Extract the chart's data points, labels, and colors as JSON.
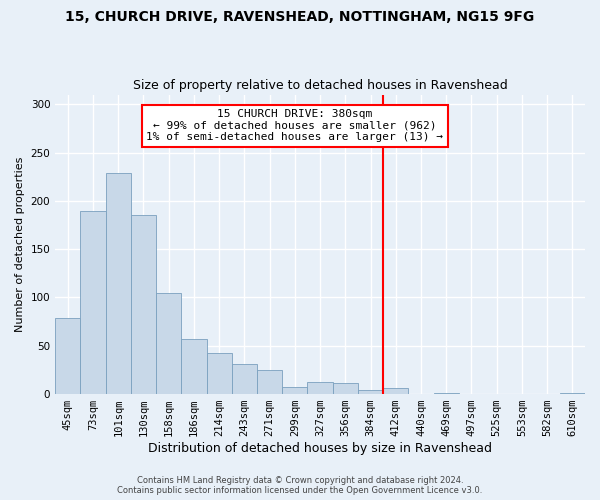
{
  "title1": "15, CHURCH DRIVE, RAVENSHEAD, NOTTINGHAM, NG15 9FG",
  "title2": "Size of property relative to detached houses in Ravenshead",
  "xlabel": "Distribution of detached houses by size in Ravenshead",
  "ylabel": "Number of detached properties",
  "bar_labels": [
    "45sqm",
    "73sqm",
    "101sqm",
    "130sqm",
    "158sqm",
    "186sqm",
    "214sqm",
    "243sqm",
    "271sqm",
    "299sqm",
    "327sqm",
    "356sqm",
    "384sqm",
    "412sqm",
    "440sqm",
    "469sqm",
    "497sqm",
    "525sqm",
    "553sqm",
    "582sqm",
    "610sqm"
  ],
  "bar_values": [
    79,
    190,
    229,
    185,
    105,
    57,
    43,
    31,
    25,
    7,
    12,
    11,
    4,
    6,
    0,
    1,
    0,
    0,
    0,
    0,
    1
  ],
  "bar_color": "#c8d8e8",
  "bar_edge_color": "#7aa0be",
  "vline_x": 12.5,
  "vline_color": "red",
  "annotation_title": "15 CHURCH DRIVE: 380sqm",
  "annotation_line1": "← 99% of detached houses are smaller (962)",
  "annotation_line2": "1% of semi-detached houses are larger (13) →",
  "annotation_box_color": "#ffffff",
  "annotation_box_edge": "red",
  "ylim": [
    0,
    310
  ],
  "yticks": [
    0,
    50,
    100,
    150,
    200,
    250,
    300
  ],
  "footer1": "Contains HM Land Registry data © Crown copyright and database right 2024.",
  "footer2": "Contains public sector information licensed under the Open Government Licence v3.0.",
  "bg_color": "#e8f0f8",
  "plot_bg_color": "#e8f0f8",
  "grid_color": "#ffffff",
  "title_fontsize": 10,
  "subtitle_fontsize": 9,
  "xlabel_fontsize": 9,
  "ylabel_fontsize": 8,
  "tick_fontsize": 7.5,
  "annot_fontsize": 8,
  "footer_fontsize": 6
}
